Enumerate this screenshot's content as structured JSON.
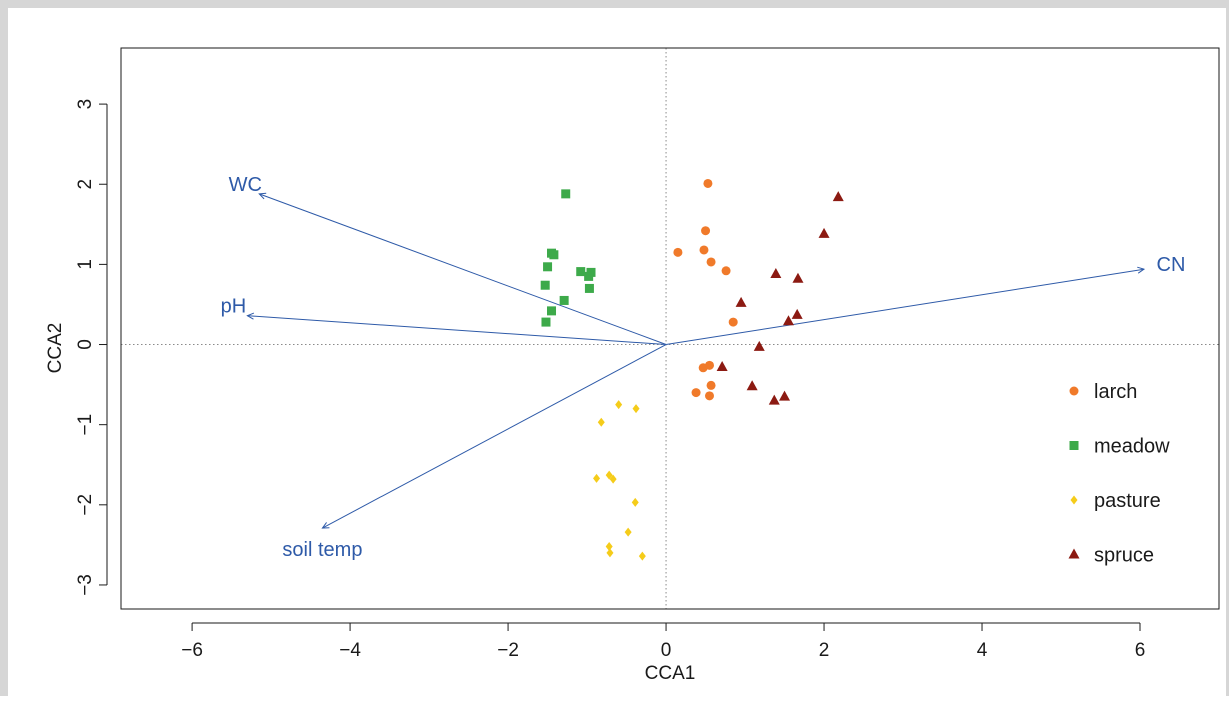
{
  "chart_data": {
    "type": "scatter",
    "xlabel": "CCA1",
    "ylabel": "CCA2",
    "xlim": [
      -6.9,
      7.0
    ],
    "ylim": [
      -3.3,
      3.7
    ],
    "xticks": [
      -6,
      -4,
      -2,
      0,
      2,
      4,
      6
    ],
    "yticks": [
      -3,
      -2,
      -1,
      0,
      1,
      2,
      3
    ],
    "xtick_labels": [
      "−6",
      "−4",
      "−2",
      "0",
      "2",
      "4",
      "6"
    ],
    "ytick_labels": [
      "−3",
      "−2",
      "−1",
      "0",
      "1",
      "2",
      "3"
    ],
    "reference_lines": "dotted lines at x = 0 and y = 0",
    "grid": false,
    "legend_position": "right",
    "arrow_color": "#2e5aa8",
    "series": [
      {
        "name": "larch",
        "marker": "circle",
        "color": "#f07a2a",
        "points": [
          [
            0.53,
            2.01
          ],
          [
            0.5,
            1.42
          ],
          [
            0.48,
            1.18
          ],
          [
            0.15,
            1.15
          ],
          [
            0.57,
            1.03
          ],
          [
            0.76,
            0.92
          ],
          [
            0.85,
            0.28
          ],
          [
            0.55,
            -0.26
          ],
          [
            0.47,
            -0.29
          ],
          [
            0.57,
            -0.51
          ],
          [
            0.38,
            -0.6
          ],
          [
            0.55,
            -0.64
          ]
        ]
      },
      {
        "name": "meadow",
        "marker": "square",
        "color": "#3daa4a",
        "points": [
          [
            -1.27,
            1.88
          ],
          [
            -1.45,
            1.14
          ],
          [
            -1.42,
            1.12
          ],
          [
            -1.5,
            0.97
          ],
          [
            -1.08,
            0.91
          ],
          [
            -0.95,
            0.9
          ],
          [
            -0.98,
            0.85
          ],
          [
            -1.53,
            0.74
          ],
          [
            -0.97,
            0.7
          ],
          [
            -1.29,
            0.55
          ],
          [
            -1.45,
            0.42
          ],
          [
            -1.52,
            0.28
          ]
        ]
      },
      {
        "name": "pasture",
        "marker": "diamond",
        "color": "#f5cc1a",
        "points": [
          [
            -0.6,
            -0.75
          ],
          [
            -0.38,
            -0.8
          ],
          [
            -0.82,
            -0.97
          ],
          [
            -0.72,
            -1.63
          ],
          [
            -0.67,
            -1.68
          ],
          [
            -0.88,
            -1.67
          ],
          [
            -0.39,
            -1.97
          ],
          [
            -0.48,
            -2.34
          ],
          [
            -0.72,
            -2.52
          ],
          [
            -0.71,
            -2.6
          ],
          [
            -0.3,
            -2.64
          ]
        ]
      },
      {
        "name": "spruce",
        "marker": "triangle",
        "color": "#8c1a12",
        "points": [
          [
            2.18,
            1.84
          ],
          [
            2.0,
            1.38
          ],
          [
            1.39,
            0.88
          ],
          [
            1.67,
            0.82
          ],
          [
            0.95,
            0.52
          ],
          [
            1.66,
            0.37
          ],
          [
            1.55,
            0.29
          ],
          [
            1.18,
            -0.03
          ],
          [
            0.71,
            -0.28
          ],
          [
            1.09,
            -0.52
          ],
          [
            1.5,
            -0.65
          ],
          [
            1.37,
            -0.7
          ]
        ]
      }
    ],
    "arrows": [
      {
        "label": "WC",
        "x": -5.15,
        "y": 1.88
      },
      {
        "label": "pH",
        "x": -5.3,
        "y": 0.36
      },
      {
        "label": "soil temp",
        "x": -4.35,
        "y": -2.29
      },
      {
        "label": "CN",
        "x": 6.05,
        "y": 0.94
      }
    ]
  }
}
